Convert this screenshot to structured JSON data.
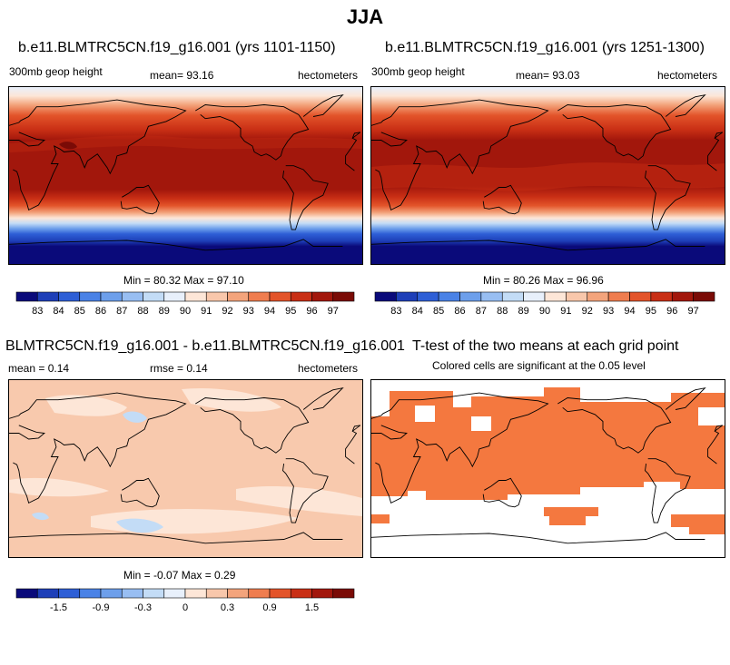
{
  "figure": {
    "title": "JJA"
  },
  "panels": [
    {
      "id": "p1",
      "title": "b.e11.BLMTRC5CN.f19_g16.001 (yrs 1101-1150)",
      "left_label": "300mb geop height",
      "center_label": "mean=  93.16",
      "right_label": "hectometers",
      "minmax": "Min =  80.32 Max =  97.10"
    },
    {
      "id": "p2",
      "title": "b.e11.BLMTRC5CN.f19_g16.001 (yrs 1251-1300)",
      "left_label": "300mb geop height",
      "center_label": "mean=  93.03",
      "right_label": "hectometers",
      "minmax": "Min =  80.26 Max =  96.96"
    },
    {
      "id": "p3",
      "title": "BLMTRC5CN.f19_g16.001 - b.e11.BLMTRC5CN.f19_g16.001",
      "left_label": "mean =   0.14",
      "center_label": "rmse =   0.14",
      "right_label": "hectometers",
      "minmax": "Min =  -0.07 Max =   0.29"
    },
    {
      "id": "p4",
      "title": "T-test of the two means at each grid point",
      "subtitle": "Colored cells are significant at the 0.05 level"
    }
  ],
  "colorbars": {
    "abs_labels": [
      "83",
      "84",
      "85",
      "86",
      "87",
      "88",
      "89",
      "90",
      "91",
      "92",
      "93",
      "94",
      "95",
      "96",
      "97"
    ],
    "abs_colors": [
      "#0a0a7a",
      "#1e3fb8",
      "#2e5fd6",
      "#4a82e6",
      "#6d9feb",
      "#98bef2",
      "#c3dcf6",
      "#e8f0fb",
      "#fde6d7",
      "#f8c7ab",
      "#f3a47c",
      "#ef7d4f",
      "#e3542a",
      "#c92f15",
      "#a2170c",
      "#7a0b06"
    ],
    "diff_labels": [
      "-1.5",
      "-0.9",
      "-0.3",
      "0",
      "0.3",
      "0.9",
      "1.5"
    ],
    "diff_colors": [
      "#0a0a7a",
      "#1e3fb8",
      "#2e5fd6",
      "#4a82e6",
      "#6d9feb",
      "#98bef2",
      "#c3dcf6",
      "#e8f0fb",
      "#fde6d7",
      "#f8c7ab",
      "#f3a47c",
      "#ef7d4f",
      "#e3542a",
      "#c92f15",
      "#a2170c",
      "#7a0b06"
    ]
  },
  "colors": {
    "diff_fill": "#f8c9ad",
    "ttest_sig": "#f4783f",
    "coast": "#000000"
  }
}
